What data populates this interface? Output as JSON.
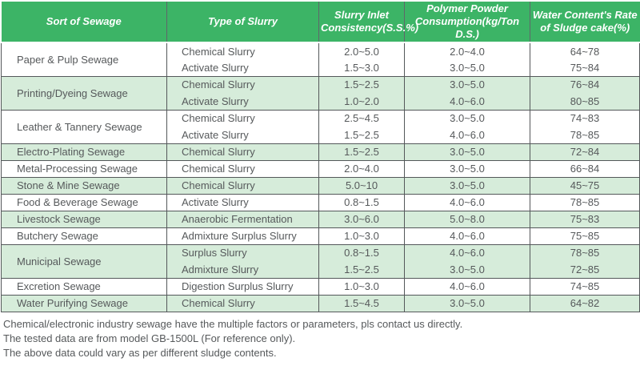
{
  "colors": {
    "header_bg": "#3cb466",
    "shaded_row_bg": "#d6ecda",
    "border": "#54585a",
    "text": "#56595b",
    "header_text": "#ffffff"
  },
  "table": {
    "headers": [
      {
        "id": "sort-of-sewage",
        "lines": [
          "Sort of Sewage"
        ]
      },
      {
        "id": "type-of-slurry",
        "lines": [
          "Type of Slurry"
        ]
      },
      {
        "id": "slurry-inlet-consistency",
        "lines": [
          "Slurry Inlet",
          "Consistency(S.S.%)"
        ]
      },
      {
        "id": "polymer-powder-consumption",
        "lines": [
          "Polymer Powder",
          "Consumption(kg/Ton D.S.)"
        ]
      },
      {
        "id": "water-content-rate",
        "lines": [
          "Water Content's Rate",
          "of Sludge cake(%)"
        ]
      }
    ],
    "groups": [
      {
        "sewage": "Paper & Pulp Sewage",
        "shaded": false,
        "rows": [
          {
            "slurry_type": "Chemical Slurry",
            "inlet_consistency": "2.0~5.0",
            "polymer_consumption": "2.0~4.0",
            "water_content_rate": "64~78"
          },
          {
            "slurry_type": "Activate Slurry",
            "inlet_consistency": "1.5~3.0",
            "polymer_consumption": "3.0~5.0",
            "water_content_rate": "75~84"
          }
        ]
      },
      {
        "sewage": "Printing/Dyeing Sewage",
        "shaded": true,
        "rows": [
          {
            "slurry_type": "Chemical Slurry",
            "inlet_consistency": "1.5~2.5",
            "polymer_consumption": "3.0~5.0",
            "water_content_rate": "76~84"
          },
          {
            "slurry_type": "Activate Slurry",
            "inlet_consistency": "1.0~2.0",
            "polymer_consumption": "4.0~6.0",
            "water_content_rate": "80~85"
          }
        ]
      },
      {
        "sewage": "Leather & Tannery Sewage",
        "shaded": false,
        "rows": [
          {
            "slurry_type": "Chemical Slurry",
            "inlet_consistency": "2.5~4.5",
            "polymer_consumption": "3.0~5.0",
            "water_content_rate": "74~83"
          },
          {
            "slurry_type": "Activate Slurry",
            "inlet_consistency": "1.5~2.5",
            "polymer_consumption": "4.0~6.0",
            "water_content_rate": "78~85"
          }
        ]
      },
      {
        "sewage": "Electro-Plating Sewage",
        "shaded": true,
        "rows": [
          {
            "slurry_type": "Chemical Slurry",
            "inlet_consistency": "1.5~2.5",
            "polymer_consumption": "3.0~5.0",
            "water_content_rate": "72~84"
          }
        ]
      },
      {
        "sewage": "Metal-Processing Sewage",
        "shaded": false,
        "rows": [
          {
            "slurry_type": "Chemical Slurry",
            "inlet_consistency": "2.0~4.0",
            "polymer_consumption": "3.0~5.0",
            "water_content_rate": "66~84"
          }
        ]
      },
      {
        "sewage": "Stone & Mine Sewage",
        "shaded": true,
        "rows": [
          {
            "slurry_type": "Chemical Slurry",
            "inlet_consistency": "5.0~10",
            "polymer_consumption": "3.0~5.0",
            "water_content_rate": "45~75"
          }
        ]
      },
      {
        "sewage": "Food & Beverage Sewage",
        "shaded": false,
        "rows": [
          {
            "slurry_type": "Activate Slurry",
            "inlet_consistency": "0.8~1.5",
            "polymer_consumption": "4.0~6.0",
            "water_content_rate": "78~85"
          }
        ]
      },
      {
        "sewage": "Livestock Sewage",
        "shaded": true,
        "rows": [
          {
            "slurry_type": "Anaerobic Fermentation",
            "inlet_consistency": "3.0~6.0",
            "polymer_consumption": "5.0~8.0",
            "water_content_rate": "75~83"
          }
        ]
      },
      {
        "sewage": "Butchery Sewage",
        "shaded": false,
        "rows": [
          {
            "slurry_type": "Admixture Surplus Slurry",
            "inlet_consistency": "1.0~3.0",
            "polymer_consumption": "4.0~6.0",
            "water_content_rate": "75~85"
          }
        ]
      },
      {
        "sewage": "Municipal Sewage",
        "shaded": true,
        "rows": [
          {
            "slurry_type": "Surplus Slurry",
            "inlet_consistency": "0.8~1.5",
            "polymer_consumption": "4.0~6.0",
            "water_content_rate": "78~85"
          },
          {
            "slurry_type": "Admixture Slurry",
            "inlet_consistency": "1.5~2.5",
            "polymer_consumption": "3.0~5.0",
            "water_content_rate": "72~85"
          }
        ]
      },
      {
        "sewage": "Excretion Sewage",
        "shaded": false,
        "rows": [
          {
            "slurry_type": "Digestion Surplus Slurry",
            "inlet_consistency": "1.0~3.0",
            "polymer_consumption": "4.0~6.0",
            "water_content_rate": "74~85"
          }
        ]
      },
      {
        "sewage": "Water Purifying Sewage",
        "shaded": true,
        "rows": [
          {
            "slurry_type": "Chemical Slurry",
            "inlet_consistency": "1.5~4.5",
            "polymer_consumption": "3.0~5.0",
            "water_content_rate": "64~82"
          }
        ]
      }
    ]
  },
  "notes": [
    "Chemical/electronic industry sewage have the multiple factors or parameters, pls contact us directly.",
    "The tested data are from model GB-1500L (For reference only).",
    "The above data could vary as per different sludge contents."
  ]
}
